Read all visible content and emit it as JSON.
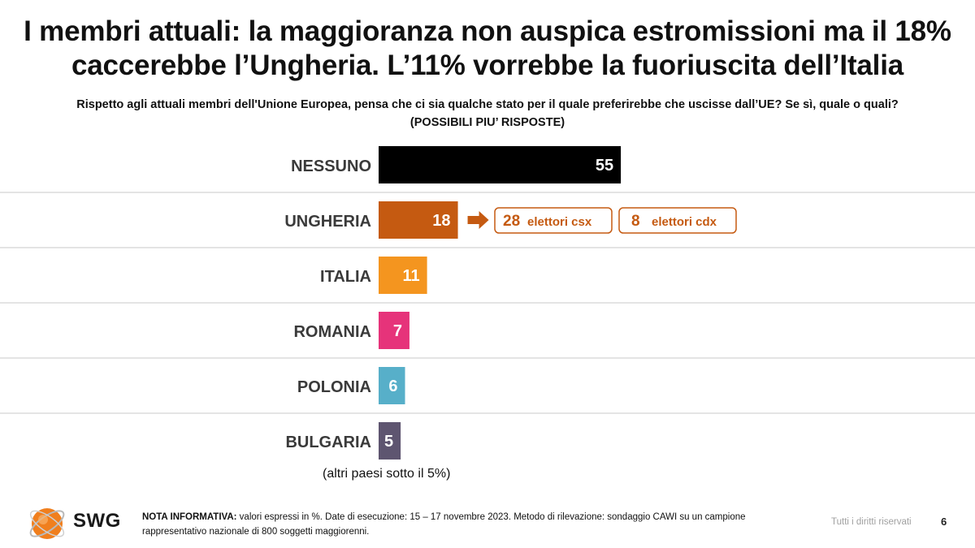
{
  "title_line1": "I membri attuali: la maggioranza non auspica estromissioni ma il 18%",
  "title_line2": "caccerebbe l’Ungheria. L’11% vorrebbe la fuoriuscita dell’Italia",
  "question_line1": "Rispetto agli attuali membri dell'Unione Europea, pensa che ci sia qualche stato per il quale preferirebbe che uscisse dall’UE? Se sì, quale o quali?",
  "question_line2": "(POSSIBILI PIU’ RISPOSTE)",
  "chart_data": {
    "type": "bar",
    "orientation": "horizontal",
    "unit": "%",
    "categories": [
      "NESSUNO",
      "UNGHERIA",
      "ITALIA",
      "ROMANIA",
      "POLONIA",
      "BULGARIA"
    ],
    "values": [
      55,
      18,
      11,
      7,
      6,
      5
    ],
    "colors": [
      "#000000",
      "#c55a11",
      "#f4951f",
      "#e6337a",
      "#57afc9",
      "#5e5570"
    ],
    "annotation_below": "(altri paesi sotto il 5%)",
    "callouts": [
      {
        "category": "UNGHERIA",
        "value": "28",
        "label": "elettori csx"
      },
      {
        "category": "UNGHERIA",
        "value": "8",
        "label": "elettori cdx"
      }
    ],
    "callout_color": "#c55a11",
    "grid": "row separators"
  },
  "footer": {
    "logo_text": "SWG",
    "note_label": "NOTA INFORMATIVA:",
    "note_text": " valori espressi in %. Date di esecuzione: 15 – 17 novembre 2023. Metodo di rilevazione: sondaggio CAWI su un campione rappresentativo nazionale di 800 soggetti maggiorenni.",
    "rights": "Tutti i diritti riservati",
    "page_number": "6"
  },
  "colors": {
    "logo_orange": "#f07f1e",
    "rights_gray": "#a0a0a0"
  }
}
